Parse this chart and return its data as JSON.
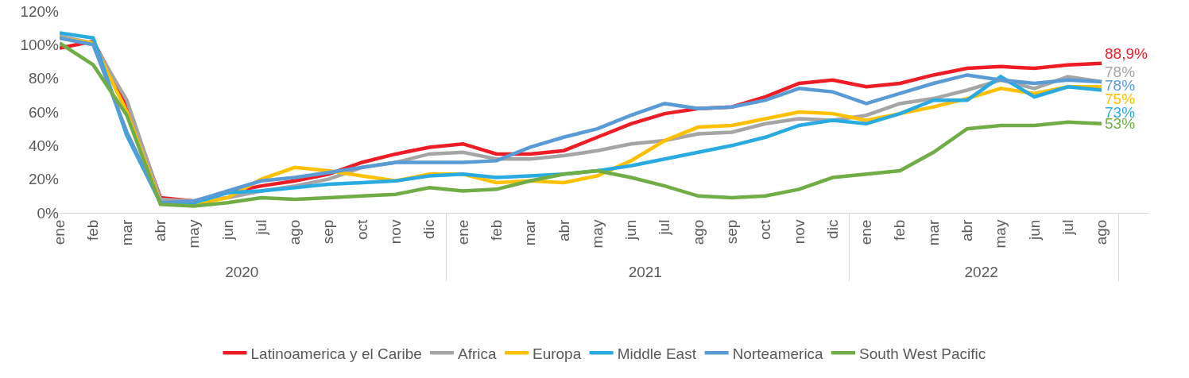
{
  "chart_data": {
    "type": "line",
    "categories": [
      "ene",
      "feb",
      "mar",
      "abr",
      "may",
      "jun",
      "jul",
      "ago",
      "sep",
      "oct",
      "nov",
      "dic",
      "ene",
      "feb",
      "mar",
      "abr",
      "may",
      "jun",
      "jul",
      "ago",
      "sep",
      "oct",
      "nov",
      "dic",
      "ene",
      "feb",
      "mar",
      "abr",
      "may",
      "jun",
      "jul",
      "ago"
    ],
    "annotations": [
      "2020",
      "2021",
      "2022"
    ],
    "ylim": [
      0,
      120
    ],
    "yticks": [
      {
        "value": 0,
        "label": "0%"
      },
      {
        "value": 20,
        "label": "20%"
      },
      {
        "value": 40,
        "label": "40%"
      },
      {
        "value": 60,
        "label": "60%"
      },
      {
        "value": 80,
        "label": "80%"
      },
      {
        "value": 100,
        "label": "100%"
      },
      {
        "value": 120,
        "label": "120%"
      }
    ],
    "grid": false,
    "legend": "bottom",
    "marker": "none",
    "line_style": "solid",
    "series": [
      {
        "name": "Latinoamerica y el Caribe",
        "color": "#ee1c25",
        "values": [
          98,
          102,
          65,
          9,
          7,
          12,
          16,
          19,
          23,
          30,
          35,
          39,
          41,
          35,
          35,
          37,
          45,
          53,
          59,
          62,
          63,
          69,
          77,
          79,
          75,
          77,
          82,
          86,
          87,
          86,
          88,
          88.9
        ],
        "value_labels": [
          null,
          null,
          null,
          null,
          null,
          null,
          null,
          null,
          null,
          null,
          null,
          null,
          null,
          null,
          null,
          null,
          null,
          null,
          null,
          null,
          null,
          null,
          null,
          null,
          null,
          null,
          null,
          null,
          null,
          null,
          null,
          "88,9%"
        ]
      },
      {
        "name": "Africa",
        "color": "#a5a5a5",
        "values": [
          105,
          101,
          67,
          8,
          7,
          9,
          13,
          16,
          20,
          27,
          30,
          35,
          36,
          32,
          32,
          34,
          37,
          41,
          43,
          47,
          48,
          53,
          56,
          55,
          58,
          65,
          68,
          73,
          79,
          74,
          81,
          78
        ],
        "value_labels": [
          null,
          null,
          null,
          null,
          null,
          null,
          null,
          null,
          null,
          null,
          null,
          null,
          null,
          null,
          null,
          null,
          null,
          null,
          null,
          null,
          null,
          null,
          null,
          null,
          null,
          null,
          null,
          null,
          null,
          null,
          null,
          "78%"
        ]
      },
      {
        "name": "Europa",
        "color": "#ffc000",
        "values": [
          104,
          101,
          60,
          6,
          5,
          9,
          20,
          27,
          25,
          22,
          19,
          23,
          23,
          18,
          19,
          18,
          22,
          31,
          43,
          51,
          52,
          56,
          60,
          59,
          55,
          59,
          63,
          68,
          74,
          71,
          75,
          75
        ],
        "value_labels": [
          null,
          null,
          null,
          null,
          null,
          null,
          null,
          null,
          null,
          null,
          null,
          null,
          null,
          null,
          null,
          null,
          null,
          null,
          null,
          null,
          null,
          null,
          null,
          null,
          null,
          null,
          null,
          null,
          null,
          null,
          null,
          "75%"
        ]
      },
      {
        "name": "Middle East",
        "color": "#29abe2",
        "values": [
          107,
          104,
          46,
          6,
          6,
          12,
          13,
          15,
          17,
          18,
          19,
          22,
          23,
          21,
          22,
          23,
          25,
          28,
          32,
          36,
          40,
          45,
          52,
          55,
          53,
          59,
          67,
          67,
          81,
          69,
          75,
          73
        ],
        "value_labels": [
          null,
          null,
          null,
          null,
          null,
          null,
          null,
          null,
          null,
          null,
          null,
          null,
          null,
          null,
          null,
          null,
          null,
          null,
          null,
          null,
          null,
          null,
          null,
          null,
          null,
          null,
          null,
          null,
          null,
          null,
          null,
          "73%"
        ]
      },
      {
        "name": "Norteamerica",
        "color": "#5b9bd5",
        "values": [
          104,
          100,
          48,
          6,
          7,
          13,
          19,
          21,
          24,
          27,
          30,
          30,
          30,
          31,
          39,
          45,
          50,
          58,
          65,
          62,
          63,
          67,
          74,
          72,
          65,
          71,
          77,
          82,
          79,
          77,
          79,
          78
        ],
        "value_labels": [
          null,
          null,
          null,
          null,
          null,
          null,
          null,
          null,
          null,
          null,
          null,
          null,
          null,
          null,
          null,
          null,
          null,
          null,
          null,
          null,
          null,
          null,
          null,
          null,
          null,
          null,
          null,
          null,
          null,
          null,
          null,
          "78%"
        ]
      },
      {
        "name": "South West Pacific",
        "color": "#70ad47",
        "values": [
          101,
          88,
          58,
          5,
          4,
          6,
          9,
          8,
          9,
          10,
          11,
          15,
          13,
          14,
          19,
          23,
          25,
          21,
          16,
          10,
          9,
          10,
          14,
          21,
          23,
          25,
          36,
          50,
          52,
          52,
          54,
          53
        ],
        "value_labels": [
          null,
          null,
          null,
          null,
          null,
          null,
          null,
          null,
          null,
          null,
          null,
          null,
          null,
          null,
          null,
          null,
          null,
          null,
          null,
          null,
          null,
          null,
          null,
          null,
          null,
          null,
          null,
          null,
          null,
          null,
          null,
          "53%"
        ]
      }
    ]
  }
}
